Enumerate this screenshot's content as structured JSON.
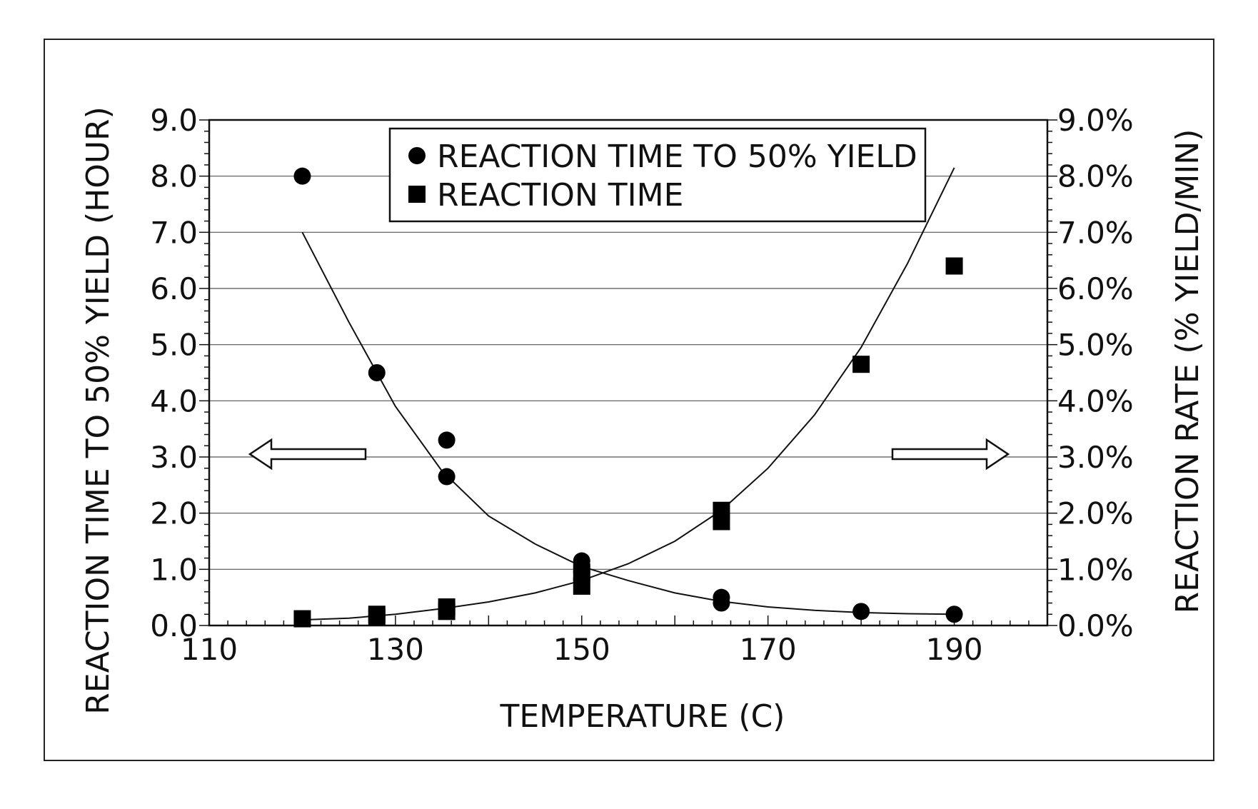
{
  "chart_data": {
    "type": "scatter",
    "xlabel": "TEMPERATURE (C)",
    "ylabel_left": "REACTION TIME TO 50% YIELD (HOUR)",
    "ylabel_right": "REACTION RATE (% YIELD/MIN)",
    "xlim": [
      110,
      200
    ],
    "ylim_left": [
      0,
      9
    ],
    "ylim_right": [
      0,
      9
    ],
    "x_ticks": [
      110,
      130,
      150,
      170,
      190
    ],
    "x_tick_labels": [
      "110",
      "130",
      "150",
      "170",
      "190"
    ],
    "y_left_ticks": [
      0,
      1,
      2,
      3,
      4,
      5,
      6,
      7,
      8,
      9
    ],
    "y_left_tick_labels": [
      "0.0",
      "1.0",
      "2.0",
      "3.0",
      "4.0",
      "5.0",
      "6.0",
      "7.0",
      "8.0",
      "9.0"
    ],
    "y_right_tick_labels": [
      "0.0%",
      "1.0%",
      "2.0%",
      "3.0%",
      "4.0%",
      "5.0%",
      "6.0%",
      "7.0%",
      "8.0%",
      "9.0%"
    ],
    "grid": "horizontal",
    "legend_position": "top-center",
    "series": [
      {
        "name": "REACTION TIME TO 50% YIELD",
        "marker": "circle",
        "axis": "left",
        "color": "#000000",
        "points": [
          {
            "x": 120,
            "y": 8.0
          },
          {
            "x": 128,
            "y": 4.5
          },
          {
            "x": 135.5,
            "y": 3.3
          },
          {
            "x": 135.5,
            "y": 2.65
          },
          {
            "x": 150,
            "y": 1.15
          },
          {
            "x": 150,
            "y": 0.95
          },
          {
            "x": 165,
            "y": 0.5
          },
          {
            "x": 165,
            "y": 0.4
          },
          {
            "x": 180,
            "y": 0.25
          },
          {
            "x": 190,
            "y": 0.2
          }
        ],
        "trendline": [
          {
            "x": 120,
            "y": 7.0
          },
          {
            "x": 125,
            "y": 5.4
          },
          {
            "x": 130,
            "y": 3.9
          },
          {
            "x": 135,
            "y": 2.75
          },
          {
            "x": 140,
            "y": 1.95
          },
          {
            "x": 145,
            "y": 1.45
          },
          {
            "x": 150,
            "y": 1.05
          },
          {
            "x": 155,
            "y": 0.8
          },
          {
            "x": 160,
            "y": 0.58
          },
          {
            "x": 165,
            "y": 0.43
          },
          {
            "x": 170,
            "y": 0.33
          },
          {
            "x": 175,
            "y": 0.27
          },
          {
            "x": 180,
            "y": 0.23
          },
          {
            "x": 185,
            "y": 0.21
          },
          {
            "x": 190,
            "y": 0.2
          }
        ]
      },
      {
        "name": "REACTION TIME",
        "marker": "square",
        "axis": "right",
        "color": "#000000",
        "points": [
          {
            "x": 120,
            "y": 0.12
          },
          {
            "x": 128,
            "y": 0.2
          },
          {
            "x": 128,
            "y": 0.15
          },
          {
            "x": 135.5,
            "y": 0.33
          },
          {
            "x": 135.5,
            "y": 0.25
          },
          {
            "x": 150,
            "y": 0.95
          },
          {
            "x": 150,
            "y": 0.7
          },
          {
            "x": 165,
            "y": 2.05
          },
          {
            "x": 165,
            "y": 1.85
          },
          {
            "x": 180,
            "y": 4.65
          },
          {
            "x": 190,
            "y": 6.4
          }
        ],
        "trendline": [
          {
            "x": 120,
            "y": 0.1
          },
          {
            "x": 125,
            "y": 0.13
          },
          {
            "x": 130,
            "y": 0.2
          },
          {
            "x": 135,
            "y": 0.3
          },
          {
            "x": 140,
            "y": 0.42
          },
          {
            "x": 145,
            "y": 0.58
          },
          {
            "x": 150,
            "y": 0.8
          },
          {
            "x": 155,
            "y": 1.1
          },
          {
            "x": 160,
            "y": 1.5
          },
          {
            "x": 165,
            "y": 2.05
          },
          {
            "x": 170,
            "y": 2.8
          },
          {
            "x": 175,
            "y": 3.75
          },
          {
            "x": 180,
            "y": 4.95
          },
          {
            "x": 185,
            "y": 6.45
          },
          {
            "x": 190,
            "y": 8.15
          }
        ]
      }
    ],
    "annotations": [
      {
        "type": "arrow",
        "direction": "left",
        "meaning": "left-axis"
      },
      {
        "type": "arrow",
        "direction": "right",
        "meaning": "right-axis"
      }
    ]
  }
}
